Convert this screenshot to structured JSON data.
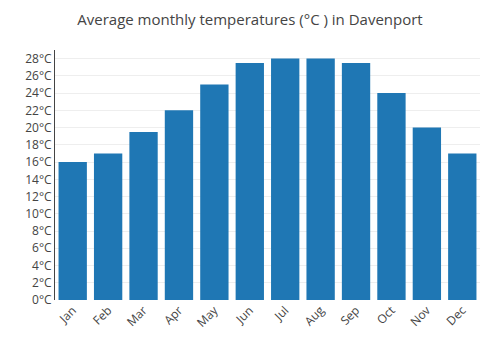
{
  "chart_data": {
    "type": "bar",
    "title": "Average monthly temperatures (°C ) in Davenport",
    "categories": [
      "Jan",
      "Feb",
      "Mar",
      "Apr",
      "May",
      "Jun",
      "Jul",
      "Aug",
      "Sep",
      "Oct",
      "Nov",
      "Dec"
    ],
    "values": [
      16,
      17,
      19.5,
      22,
      25,
      27.5,
      28,
      28,
      27.5,
      24,
      20,
      17
    ],
    "ylim": [
      0,
      29
    ],
    "yticks": [
      {
        "value": 0,
        "label": "0°C"
      },
      {
        "value": 2,
        "label": "2°C"
      },
      {
        "value": 4,
        "label": "4°C"
      },
      {
        "value": 6,
        "label": "6°C"
      },
      {
        "value": 8,
        "label": "8°C"
      },
      {
        "value": 10,
        "label": "10°C"
      },
      {
        "value": 12,
        "label": "12°C"
      },
      {
        "value": 14,
        "label": "14°C"
      },
      {
        "value": 16,
        "label": "16°C"
      },
      {
        "value": 18,
        "label": "18°C"
      },
      {
        "value": 20,
        "label": "20°C"
      },
      {
        "value": 22,
        "label": "22°C"
      },
      {
        "value": 24,
        "label": "24°C"
      },
      {
        "value": 26,
        "label": "26°C"
      },
      {
        "value": 28,
        "label": "28°C"
      }
    ],
    "grid": true
  }
}
